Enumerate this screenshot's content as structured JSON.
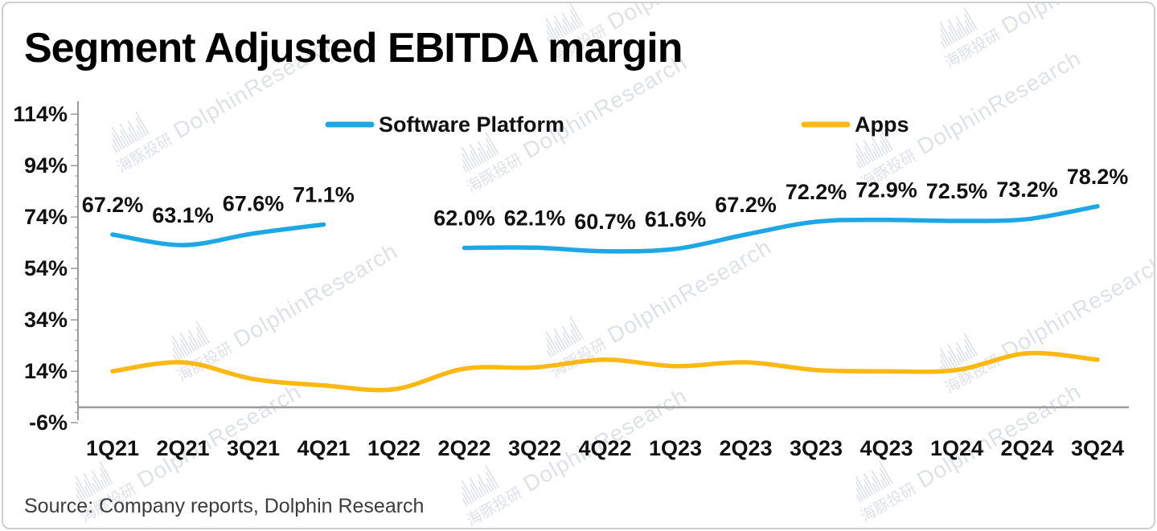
{
  "title": "Segment Adjusted EBITDA margin",
  "source": "Source: Company reports, Dolphin Research",
  "watermark": {
    "cjk": "海豚投研",
    "latin": "DolphinResearch"
  },
  "colors": {
    "software_platform": "#1EA7E4",
    "apps": "#FDB813",
    "axis": "#9B9B9B",
    "text": "#111111",
    "watermark": "#BCC2CA",
    "frame_border": "#CFCFCF",
    "background": "#FFFFFF"
  },
  "chart_data": {
    "type": "line",
    "title": "Segment Adjusted EBITDA margin",
    "categories": [
      "1Q21",
      "2Q21",
      "3Q21",
      "4Q21",
      "1Q22",
      "2Q22",
      "3Q22",
      "4Q22",
      "1Q23",
      "2Q23",
      "3Q23",
      "4Q23",
      "1Q24",
      "2Q24",
      "3Q24"
    ],
    "series": [
      {
        "name": "Software Platform",
        "color": "#1EA7E4",
        "values": [
          67.2,
          63.1,
          67.6,
          71.1,
          null,
          62.0,
          62.1,
          60.7,
          61.6,
          67.2,
          72.2,
          72.9,
          72.5,
          73.2,
          78.2
        ],
        "point_labels": [
          "67.2%",
          "63.1%",
          "67.6%",
          "71.1%",
          "",
          "62.0%",
          "62.1%",
          "60.7%",
          "61.6%",
          "67.2%",
          "72.2%",
          "72.9%",
          "72.5%",
          "73.2%",
          "78.2%"
        ]
      },
      {
        "name": "Apps",
        "color": "#FDB813",
        "values": [
          14,
          17.5,
          11,
          8.5,
          7,
          15,
          15.5,
          18.5,
          16,
          17.5,
          14.5,
          14,
          14.5,
          21,
          18.5
        ],
        "point_labels": []
      }
    ],
    "ytick_values": [
      114,
      94,
      74,
      54,
      34,
      14,
      -6
    ],
    "ytick_labels": [
      "114%",
      "94%",
      "74%",
      "54%",
      "34%",
      "14%",
      "-6%"
    ],
    "ylim": [
      -6,
      114
    ],
    "grid": false,
    "legend_position": "top-inside"
  }
}
